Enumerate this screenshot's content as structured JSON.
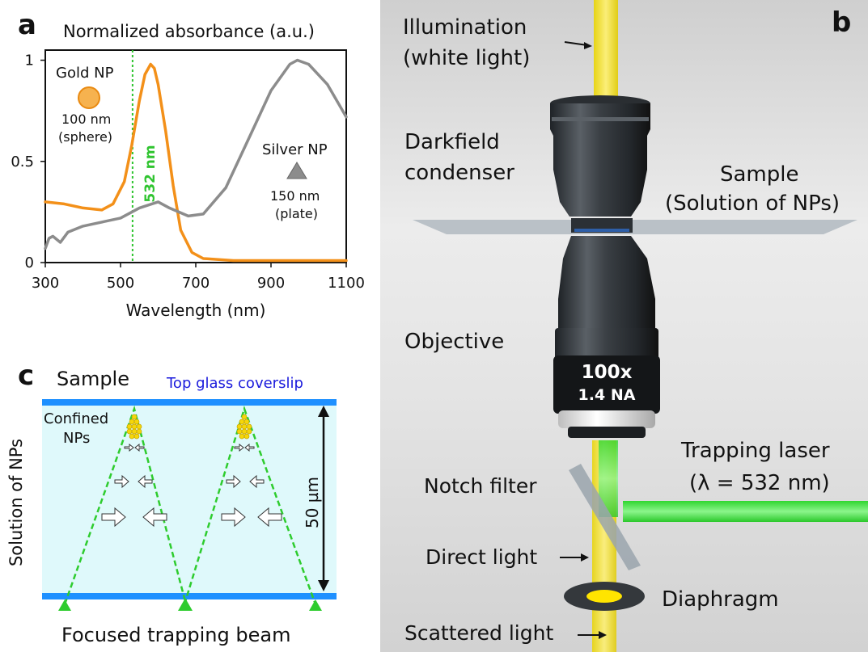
{
  "panel_a": {
    "letter": "a",
    "title": "Normalized absorbance (a.u.)",
    "xlabel": "Wavelength (nm)",
    "yticks": [
      "0",
      "0.5",
      "1"
    ],
    "xticks": [
      "300",
      "500",
      "700",
      "900",
      "1100"
    ],
    "gold_label": "Gold NP",
    "gold_size": "100 nm",
    "gold_shape": "(sphere)",
    "silver_label": "Silver NP",
    "silver_size": "150 nm",
    "silver_shape": "(plate)",
    "laser_line_label": "532 nm"
  },
  "chart_data": {
    "type": "line",
    "xlabel": "Wavelength (nm)",
    "ylabel": "Normalized absorbance (a.u.)",
    "xlim": [
      300,
      1100
    ],
    "ylim": [
      0,
      1.05
    ],
    "series": [
      {
        "name": "Gold NP",
        "color": "#f39019",
        "x": [
          300,
          350,
          400,
          450,
          480,
          510,
          530,
          550,
          565,
          580,
          590,
          600,
          620,
          640,
          660,
          690,
          720,
          800,
          900,
          1000,
          1100
        ],
        "y": [
          0.3,
          0.29,
          0.27,
          0.26,
          0.29,
          0.4,
          0.58,
          0.8,
          0.93,
          0.98,
          0.96,
          0.88,
          0.65,
          0.38,
          0.16,
          0.05,
          0.02,
          0.01,
          0.01,
          0.01,
          0.01
        ]
      },
      {
        "name": "Silver NP",
        "color": "#8c8c8c",
        "x": [
          300,
          310,
          320,
          340,
          360,
          400,
          450,
          500,
          550,
          600,
          630,
          680,
          720,
          780,
          850,
          900,
          950,
          970,
          1000,
          1050,
          1100
        ],
        "y": [
          0.07,
          0.12,
          0.13,
          0.1,
          0.15,
          0.18,
          0.2,
          0.22,
          0.27,
          0.3,
          0.27,
          0.23,
          0.24,
          0.37,
          0.65,
          0.85,
          0.98,
          1.0,
          0.98,
          0.88,
          0.72
        ]
      }
    ],
    "vline": {
      "x": 532,
      "color": "#2fc42f"
    },
    "grid": false
  },
  "panel_b": {
    "letter": "b",
    "illumination_1": "Illumination",
    "illumination_2": "(white light)",
    "condenser_1": "Darkfield",
    "condenser_2": "condenser",
    "sample_1": "Sample",
    "sample_2": "(Solution of NPs)",
    "objective": "Objective",
    "obj_mag": "100x",
    "obj_na": "1.4 NA",
    "laser_1": "Trapping laser",
    "laser_2": "(λ = 532 nm)",
    "notch": "Notch filter",
    "direct": "Direct light",
    "diaphragm": "Diaphragm",
    "scattered": "Scattered light",
    "colors": {
      "white_beam": "#f2e01a",
      "laser": "#3ee43e"
    }
  },
  "panel_c": {
    "letter": "c",
    "sample": "Sample",
    "coverslip": "Top glass coverslip",
    "confined_1": "Confined",
    "confined_2": "NPs",
    "ylabel": "Solution of NPs",
    "height": "50 µm",
    "beam": "Focused trapping beam",
    "colors": {
      "glass": "#1e90ff",
      "solution": "#dff9fb",
      "beam": "#2ecc2e",
      "np": "#f5d60a"
    }
  }
}
